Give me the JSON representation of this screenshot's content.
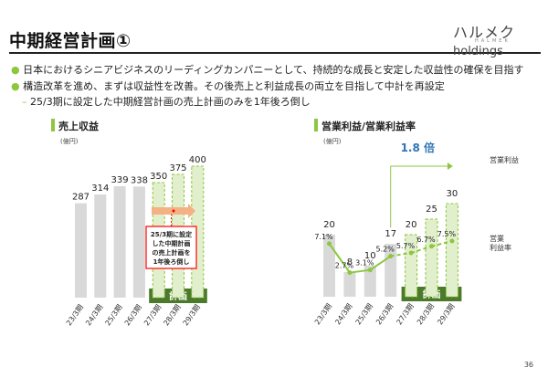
{
  "header": {
    "title": "中期経営計画①",
    "logo_text": "ハルメク",
    "logo_holdings": "holdings",
    "logo_sub": "HALMEK"
  },
  "bullets": [
    "日本におけるシニアビジネスのリーディングカンパニーとして、持続的な成長と安定した収益性の確保を目指す",
    "構造改革を進め、まずは収益性を改善。その後売上と利益成長の両立を目指して中計を再設定",
    "25/3期に設定した中期経営計画の売上計画のみを1年後ろ倒し"
  ],
  "colors": {
    "accent": "#8dc63f",
    "bar_actual": "#d9d9d9",
    "plan_fill": "#e2efcc",
    "plan_stroke": "#8dc63f",
    "dark_green": "#4a7a2a",
    "callout": "#ff0000",
    "arrow": "#f4b183"
  },
  "chart_data": [
    {
      "type": "bar",
      "title": "売上収益",
      "unit": "(億円)",
      "categories": [
        "23/3期",
        "24/3期",
        "25/3期",
        "26/3期",
        "27/3期",
        "28/3期",
        "29/3期"
      ],
      "values": [
        287,
        314,
        339,
        338,
        350,
        375,
        400
      ],
      "planned_from_index": 4,
      "plan_label": "計画",
      "callout": [
        "25/3期に設定",
        "した中期計画",
        "の売上計画を",
        "1年後ろ倒し"
      ]
    },
    {
      "type": "bar",
      "title": "営業利益/営業利益率",
      "unit": "(億円)",
      "categories": [
        "23/3期",
        "24/3期",
        "25/3期",
        "26/3期",
        "27/3期",
        "28/3期",
        "29/3期"
      ],
      "series": [
        {
          "name": "営業利益",
          "values": [
            20,
            8,
            10,
            17,
            20,
            25,
            30
          ]
        },
        {
          "name": "営業利益率",
          "values": [
            7.1,
            2.7,
            3.1,
            5.2,
            5.7,
            6.7,
            7.5
          ],
          "labels": [
            "7.1%",
            "2.7%",
            "3.1%",
            "5.2%",
            "5.7%",
            "6.7%",
            "7.5%"
          ]
        }
      ],
      "planned_from_index": 4,
      "plan_label": "計画",
      "growth_label": "1.8 倍",
      "legend_profit": "営業利益",
      "legend_margin": [
        "営業",
        "利益率"
      ]
    }
  ],
  "page_number": "36"
}
